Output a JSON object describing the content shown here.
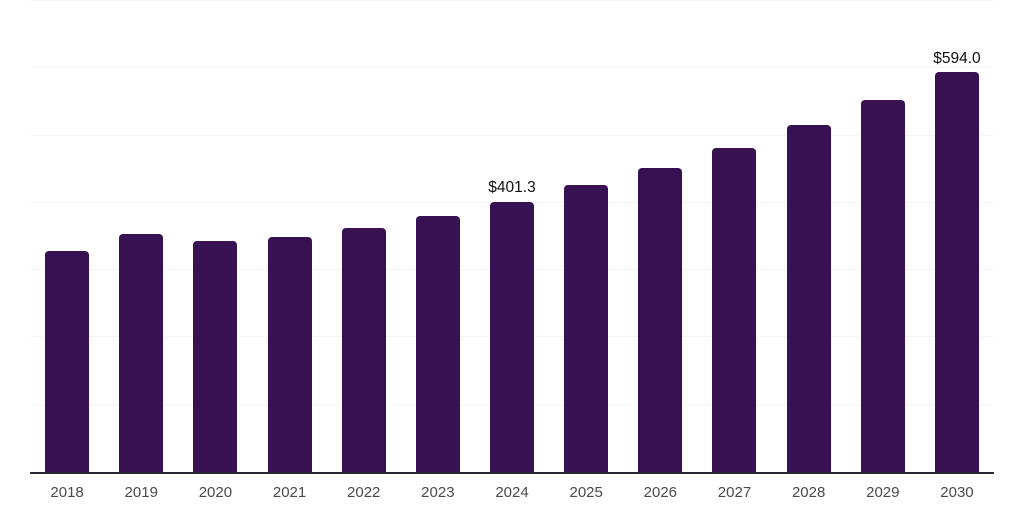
{
  "chart_data": {
    "type": "bar",
    "title": "",
    "xlabel": "",
    "ylabel": "",
    "categories": [
      "2018",
      "2019",
      "2020",
      "2021",
      "2022",
      "2023",
      "2024",
      "2025",
      "2026",
      "2027",
      "2028",
      "2029",
      "2030"
    ],
    "values": [
      329.0,
      353.5,
      342.8,
      350.0,
      362.4,
      380.2,
      401.3,
      426.7,
      451.9,
      481.7,
      515.7,
      552.8,
      594.0
    ],
    "data_labels": {
      "2024": "$401.3",
      "2030": "$594.0"
    },
    "ylim": [
      0,
      700
    ],
    "gridline_step": 100,
    "grid": "horizontal-only",
    "legend": "none",
    "colors": {
      "bar": "#371152",
      "gridline": "#f3f3f3",
      "axis_line": "#2a2533",
      "x_tick_label": "#4a4a4a",
      "data_label": "#111111"
    }
  }
}
